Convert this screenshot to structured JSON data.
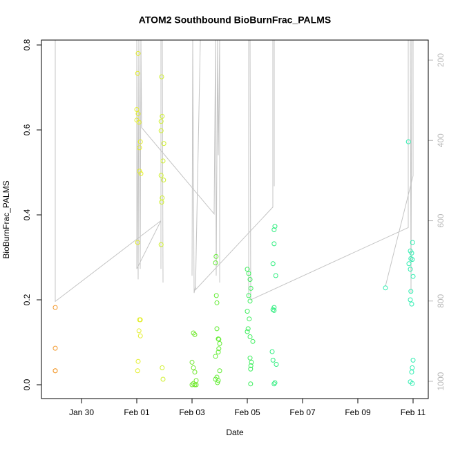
{
  "chart_data": {
    "type": "scatter",
    "title": "ATOM2 Southbound BioBurnFrac_PALMS",
    "x_label": "Date",
    "y_label": "BioBurnFrac_PALMS",
    "xlim": [
      28.55,
      42.55
    ],
    "xticks": [
      {
        "value": 30,
        "label": "Jan 30"
      },
      {
        "value": 32,
        "label": "Feb 01"
      },
      {
        "value": 34,
        "label": "Feb 03"
      },
      {
        "value": 36,
        "label": "Feb 05"
      },
      {
        "value": 38,
        "label": "Feb 07"
      },
      {
        "value": 40,
        "label": "Feb 09"
      },
      {
        "value": 42,
        "label": "Feb 11"
      }
    ],
    "ylim": [
      -0.0325,
      0.8115
    ],
    "yticks": [
      {
        "value": 0,
        "label": "0.0"
      },
      0.2,
      0.4,
      0.6,
      0.8
    ],
    "y2lim": [
      1043,
      150
    ],
    "y2ticks": [
      200,
      400,
      600,
      800,
      1000
    ],
    "y2_color": "#b8b8b8",
    "series": [
      {
        "color": "#f39a2f",
        "x": [
          29.05,
          29.05,
          29.05,
          29.05
        ],
        "values": [
          0.182,
          0.086,
          0.033,
          0.033
        ]
      },
      {
        "color": "#e3ee2a",
        "x": [
          32.05,
          32.03,
          32.0,
          32.05,
          32.0,
          32.08,
          32.13,
          32.1,
          32.1,
          32.15,
          32.03,
          32.1,
          32.13,
          32.08,
          32.13,
          32.05,
          32.03
        ],
        "values": [
          0.78,
          0.733,
          0.648,
          0.638,
          0.623,
          0.618,
          0.572,
          0.558,
          0.503,
          0.497,
          0.335,
          0.153,
          0.153,
          0.127,
          0.115,
          0.055,
          0.033
        ]
      },
      {
        "color": "#cff02a",
        "x": [
          32.9,
          32.92,
          32.88,
          32.88,
          32.98,
          32.95,
          32.88,
          32.97,
          32.92,
          32.9,
          32.88,
          32.92,
          32.95
        ],
        "values": [
          0.725,
          0.632,
          0.62,
          0.598,
          0.568,
          0.527,
          0.493,
          0.482,
          0.44,
          0.43,
          0.33,
          0.04,
          0.013
        ]
      },
      {
        "color": "#6fe82a",
        "x": [
          34.05,
          34.1,
          34.0,
          34.05,
          34.1,
          34.15,
          34.05,
          34.1,
          34.0,
          34.15
        ],
        "values": [
          0.122,
          0.118,
          0.053,
          0.04,
          0.03,
          0.01,
          0.003,
          0.0,
          0.0,
          0.0
        ]
      },
      {
        "color": "#62ec33",
        "x": [
          34.87,
          34.85,
          34.88,
          34.9,
          34.9,
          34.95,
          34.97,
          35.0,
          34.97,
          34.95,
          34.85,
          35.0,
          34.9,
          34.85,
          34.95,
          34.92
        ],
        "values": [
          0.302,
          0.287,
          0.21,
          0.193,
          0.132,
          0.108,
          0.107,
          0.097,
          0.085,
          0.077,
          0.067,
          0.033,
          0.018,
          0.013,
          0.01,
          0.005
        ]
      },
      {
        "color": "#3eee5e",
        "x": [
          36.0,
          36.05,
          36.1,
          36.13,
          36.05,
          36.1,
          36.0,
          36.07,
          36.03,
          36.0,
          36.1,
          36.2,
          36.1,
          36.15,
          36.13,
          36.12,
          36.12
        ],
        "values": [
          0.272,
          0.262,
          0.248,
          0.227,
          0.21,
          0.197,
          0.173,
          0.155,
          0.132,
          0.125,
          0.113,
          0.102,
          0.063,
          0.053,
          0.045,
          0.037,
          0.002
        ]
      },
      {
        "color": "#2eee7e",
        "x": [
          37.0,
          36.97,
          36.97,
          36.93,
          37.03,
          36.97,
          36.93,
          36.97,
          36.9,
          36.93,
          37.05,
          37.0,
          36.97
        ],
        "values": [
          0.373,
          0.365,
          0.332,
          0.285,
          0.257,
          0.182,
          0.177,
          0.175,
          0.078,
          0.058,
          0.048,
          0.005,
          0.002
        ]
      },
      {
        "color": "#2eeeb0",
        "x": [
          41.0,
          41.83,
          41.98,
          41.9,
          41.95,
          41.92,
          41.97,
          41.85,
          41.9,
          42.0,
          41.92,
          41.9,
          41.95,
          42.0,
          41.97,
          41.95,
          41.9,
          41.97
        ],
        "values": [
          0.228,
          0.572,
          0.335,
          0.315,
          0.31,
          0.297,
          0.295,
          0.285,
          0.272,
          0.255,
          0.22,
          0.2,
          0.19,
          0.058,
          0.04,
          0.03,
          0.007,
          0.003
        ]
      },
      {
        "type": "line",
        "axis": "y2",
        "color": "#c4c4c4",
        "x": [
          29.05,
          29.05,
          32.875,
          32.0,
          32.0,
          32.05,
          32.075,
          32.125,
          32.15,
          32.175,
          34.8,
          34.85,
          34.875,
          34.925,
          34.95,
          35.0,
          35.0,
          null,
          32.875,
          32.875,
          32.925,
          32.95,
          null,
          34.0,
          34.025,
          34.075,
          34.125,
          34.3,
          34.125,
          36.925,
          36.925,
          36.975,
          36.975,
          null,
          36.05,
          36.05,
          36.1,
          36.125,
          41.825,
          41.825,
          41.9,
          41.925,
          41.95,
          42.0,
          42.0,
          41.0
        ],
        "values": [
          150,
          801,
          600,
          720,
          150,
          746,
          150,
          720,
          150,
          368,
          583,
          150,
          737,
          150,
          437,
          150,
          754,
          null,
          720,
          150,
          150,
          754,
          null,
          737,
          150,
          780,
          763,
          150,
          772,
          566,
          150,
          150,
          514,
          null,
          789,
          150,
          150,
          797,
          617,
          150,
          150,
          780,
          150,
          150,
          488,
          763
        ]
      }
    ]
  }
}
